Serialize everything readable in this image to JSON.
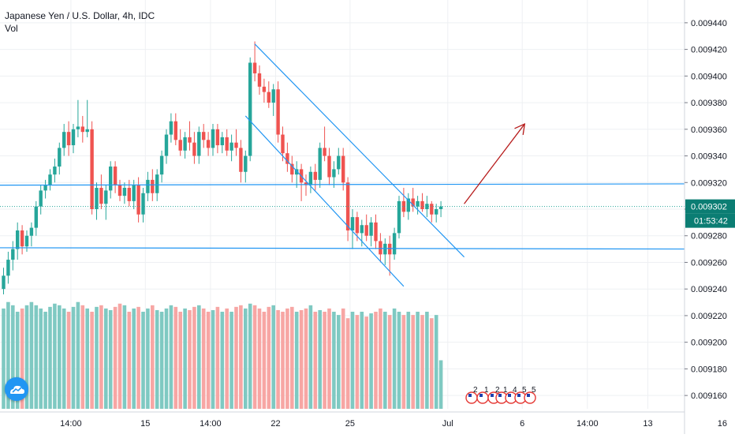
{
  "header": {
    "symbol_line": "Japanese Yen / U.S. Dollar, 4h, IDC",
    "volume_label": "Vol"
  },
  "colors": {
    "up": "#26a69a",
    "down": "#ef5350",
    "volume_up": "#7fc9c2",
    "volume_down": "#f7a6a4",
    "trendline": "#2196f3",
    "arrow": "#b71c1c",
    "price_tag": "#0b7d73",
    "grid": "#eef0f3",
    "axis_text": "#131722"
  },
  "icons": {
    "logo": "tradingview-cloud-icon",
    "events": "us-flag-event-icon"
  },
  "events": {
    "labels": [
      "2",
      "1",
      "2",
      "1",
      "4",
      "5",
      "5"
    ]
  },
  "chart_data": {
    "type": "candlestick",
    "title": "Japanese Yen / U.S. Dollar, 4h, IDC",
    "y_ticks": [
      "0.009160",
      "0.009180",
      "0.009200",
      "0.009220",
      "0.009240",
      "0.009260",
      "0.009280",
      "0.009300",
      "0.009320",
      "0.009340",
      "0.009360",
      "0.009380",
      "0.009400",
      "0.009420",
      "0.009440"
    ],
    "x_ticks": [
      {
        "label": "14:00",
        "bar": 6
      },
      {
        "label": "15",
        "bar": 22
      },
      {
        "label": "14:00",
        "bar": 36
      },
      {
        "label": "22",
        "bar": 50
      },
      {
        "label": "25",
        "bar": 66
      },
      {
        "label": "Jul",
        "bar": 87
      },
      {
        "label": "6",
        "bar": 103
      },
      {
        "label": "14:00",
        "bar": 117
      },
      {
        "label": "13",
        "bar": 130
      },
      {
        "label": "16",
        "bar": 146
      }
    ],
    "last_price": "0.009302",
    "countdown": "01:53:42",
    "ylim": [
      0.00915,
      0.00945
    ],
    "ohlc": [
      [
        0.00924,
        0.009256,
        0.009236,
        0.00925
      ],
      [
        0.00925,
        0.009268,
        0.009244,
        0.009262
      ],
      [
        0.009262,
        0.009276,
        0.009254,
        0.00927
      ],
      [
        0.00927,
        0.00929,
        0.009262,
        0.009284
      ],
      [
        0.009284,
        0.009288,
        0.009266,
        0.009272
      ],
      [
        0.009272,
        0.009284,
        0.009268,
        0.00928
      ],
      [
        0.00928,
        0.00929,
        0.009272,
        0.009286
      ],
      [
        0.009286,
        0.009306,
        0.00928,
        0.009302
      ],
      [
        0.009302,
        0.009318,
        0.009296,
        0.009314
      ],
      [
        0.009314,
        0.009322,
        0.009308,
        0.009318
      ],
      [
        0.009318,
        0.00933,
        0.009314,
        0.009326
      ],
      [
        0.009326,
        0.009338,
        0.00932,
        0.009332
      ],
      [
        0.009332,
        0.00935,
        0.009326,
        0.009346
      ],
      [
        0.009346,
        0.009364,
        0.00934,
        0.009358
      ],
      [
        0.009358,
        0.009366,
        0.00934,
        0.009348
      ],
      [
        0.009348,
        0.009364,
        0.009342,
        0.00936
      ],
      [
        0.00936,
        0.009382,
        0.009354,
        0.009362
      ],
      [
        0.009362,
        0.00937,
        0.00935,
        0.009358
      ],
      [
        0.009358,
        0.009382,
        0.009354,
        0.00936
      ],
      [
        0.00936,
        0.009366,
        0.009296,
        0.0093
      ],
      [
        0.0093,
        0.00932,
        0.009292,
        0.009316
      ],
      [
        0.009316,
        0.009326,
        0.0093,
        0.009304
      ],
      [
        0.009304,
        0.009318,
        0.009292,
        0.009314
      ],
      [
        0.009314,
        0.009336,
        0.009308,
        0.009332
      ],
      [
        0.009332,
        0.009336,
        0.009312,
        0.009318
      ],
      [
        0.009318,
        0.009322,
        0.009306,
        0.00931
      ],
      [
        0.00931,
        0.00932,
        0.009304,
        0.009316
      ],
      [
        0.009316,
        0.009322,
        0.009302,
        0.009306
      ],
      [
        0.009306,
        0.009322,
        0.0093,
        0.009318
      ],
      [
        0.009318,
        0.009324,
        0.00929,
        0.009296
      ],
      [
        0.009296,
        0.009316,
        0.00929,
        0.009312
      ],
      [
        0.009312,
        0.009328,
        0.009306,
        0.009322
      ],
      [
        0.009322,
        0.00933,
        0.009306,
        0.009312
      ],
      [
        0.009312,
        0.00933,
        0.009306,
        0.009326
      ],
      [
        0.009326,
        0.009344,
        0.00932,
        0.00934
      ],
      [
        0.00934,
        0.00936,
        0.009334,
        0.009356
      ],
      [
        0.009356,
        0.009372,
        0.00935,
        0.009366
      ],
      [
        0.009366,
        0.009372,
        0.009348,
        0.009352
      ],
      [
        0.009352,
        0.00936,
        0.00934,
        0.009344
      ],
      [
        0.009344,
        0.009358,
        0.009338,
        0.009354
      ],
      [
        0.009354,
        0.009366,
        0.009344,
        0.00935
      ],
      [
        0.00935,
        0.009358,
        0.009334,
        0.00934
      ],
      [
        0.00934,
        0.009362,
        0.009334,
        0.009358
      ],
      [
        0.009358,
        0.009364,
        0.009346,
        0.009352
      ],
      [
        0.009352,
        0.009358,
        0.00934,
        0.009346
      ],
      [
        0.009346,
        0.009364,
        0.00934,
        0.00936
      ],
      [
        0.00936,
        0.009364,
        0.009342,
        0.009348
      ],
      [
        0.009348,
        0.009358,
        0.009342,
        0.009354
      ],
      [
        0.009354,
        0.00936,
        0.00934,
        0.009344
      ],
      [
        0.009344,
        0.009356,
        0.009336,
        0.00935
      ],
      [
        0.00935,
        0.00936,
        0.00934,
        0.009346
      ],
      [
        0.009346,
        0.009352,
        0.00932,
        0.009328
      ],
      [
        0.009328,
        0.009344,
        0.00932,
        0.00934
      ],
      [
        0.00934,
        0.009414,
        0.009336,
        0.00941
      ],
      [
        0.00941,
        0.009426,
        0.009396,
        0.009402
      ],
      [
        0.009402,
        0.009408,
        0.009386,
        0.009392
      ],
      [
        0.009392,
        0.009398,
        0.00938,
        0.009388
      ],
      [
        0.009388,
        0.009396,
        0.009376,
        0.00938
      ],
      [
        0.00938,
        0.009394,
        0.00937,
        0.00939
      ],
      [
        0.00939,
        0.009396,
        0.00935,
        0.009356
      ],
      [
        0.009356,
        0.009362,
        0.009336,
        0.009342
      ],
      [
        0.009342,
        0.00935,
        0.009328,
        0.009334
      ],
      [
        0.009334,
        0.00934,
        0.00932,
        0.009326
      ],
      [
        0.009326,
        0.009336,
        0.009316,
        0.00933
      ],
      [
        0.00933,
        0.009334,
        0.009306,
        0.00932
      ],
      [
        0.00932,
        0.009326,
        0.00931,
        0.009318
      ],
      [
        0.009318,
        0.009332,
        0.009312,
        0.009328
      ],
      [
        0.009328,
        0.009334,
        0.009314,
        0.009322
      ],
      [
        0.009322,
        0.00935,
        0.009316,
        0.009346
      ],
      [
        0.009346,
        0.009362,
        0.009336,
        0.00934
      ],
      [
        0.00934,
        0.009346,
        0.009318,
        0.009324
      ],
      [
        0.009324,
        0.009336,
        0.009316,
        0.00933
      ],
      [
        0.00933,
        0.009346,
        0.009326,
        0.00934
      ],
      [
        0.00934,
        0.009346,
        0.009314,
        0.00932
      ],
      [
        0.00932,
        0.009324,
        0.009276,
        0.009284
      ],
      [
        0.009284,
        0.0093,
        0.00927,
        0.009294
      ],
      [
        0.009294,
        0.009298,
        0.009276,
        0.009282
      ],
      [
        0.009282,
        0.009292,
        0.009272,
        0.009288
      ],
      [
        0.009288,
        0.009296,
        0.009276,
        0.00928
      ],
      [
        0.00928,
        0.009294,
        0.009272,
        0.00929
      ],
      [
        0.00929,
        0.009296,
        0.00927,
        0.009276
      ],
      [
        0.009276,
        0.009282,
        0.00926,
        0.009266
      ],
      [
        0.009266,
        0.009278,
        0.009258,
        0.009274
      ],
      [
        0.009274,
        0.00928,
        0.00925,
        0.009266
      ],
      [
        0.009266,
        0.009286,
        0.009262,
        0.009282
      ],
      [
        0.009282,
        0.00931,
        0.009278,
        0.009306
      ],
      [
        0.009306,
        0.009316,
        0.009294,
        0.009298
      ],
      [
        0.009298,
        0.009312,
        0.009292,
        0.009308
      ],
      [
        0.009308,
        0.009316,
        0.009298,
        0.009302
      ],
      [
        0.009302,
        0.00931,
        0.009296,
        0.009306
      ],
      [
        0.009306,
        0.009312,
        0.009298,
        0.0093
      ],
      [
        0.0093,
        0.00931,
        0.009294,
        0.009304
      ],
      [
        0.009304,
        0.009306,
        0.00929,
        0.009296
      ],
      [
        0.009296,
        0.009304,
        0.00929,
        0.0093
      ],
      [
        0.0093,
        0.009306,
        0.009294,
        0.009302
      ]
    ],
    "volume": [
      0.62,
      0.66,
      0.64,
      0.6,
      0.62,
      0.64,
      0.66,
      0.64,
      0.62,
      0.6,
      0.63,
      0.65,
      0.64,
      0.62,
      0.6,
      0.63,
      0.66,
      0.64,
      0.62,
      0.6,
      0.63,
      0.64,
      0.62,
      0.61,
      0.63,
      0.65,
      0.64,
      0.6,
      0.62,
      0.63,
      0.6,
      0.62,
      0.64,
      0.61,
      0.6,
      0.62,
      0.64,
      0.63,
      0.6,
      0.62,
      0.61,
      0.63,
      0.64,
      0.62,
      0.6,
      0.61,
      0.63,
      0.6,
      0.62,
      0.6,
      0.63,
      0.64,
      0.62,
      0.65,
      0.64,
      0.62,
      0.6,
      0.63,
      0.64,
      0.61,
      0.6,
      0.62,
      0.63,
      0.6,
      0.61,
      0.62,
      0.64,
      0.6,
      0.61,
      0.6,
      0.62,
      0.6,
      0.58,
      0.62,
      0.56,
      0.6,
      0.58,
      0.6,
      0.57,
      0.59,
      0.6,
      0.62,
      0.6,
      0.58,
      0.62,
      0.6,
      0.58,
      0.6,
      0.58,
      0.6,
      0.58,
      0.6,
      0.56,
      0.58,
      0.3
    ],
    "lines": [
      {
        "name": "",
        "from": [
          -1,
          0.009318
        ],
        "to": [
          148,
          0.009319
        ]
      },
      {
        "name": "",
        "from": [
          -1,
          0.009271
        ],
        "to": [
          152,
          0.00927
        ]
      },
      {
        "name": "",
        "from": [
          54,
          0.009424
        ],
        "to": [
          99,
          0.009264
        ]
      },
      {
        "name": "",
        "from": [
          52,
          0.00937
        ],
        "to": [
          86,
          0.009242
        ]
      }
    ],
    "arrow": {
      "from": [
        99,
        0.009304
      ],
      "to": [
        112,
        0.009364
      ]
    },
    "grid": true
  }
}
